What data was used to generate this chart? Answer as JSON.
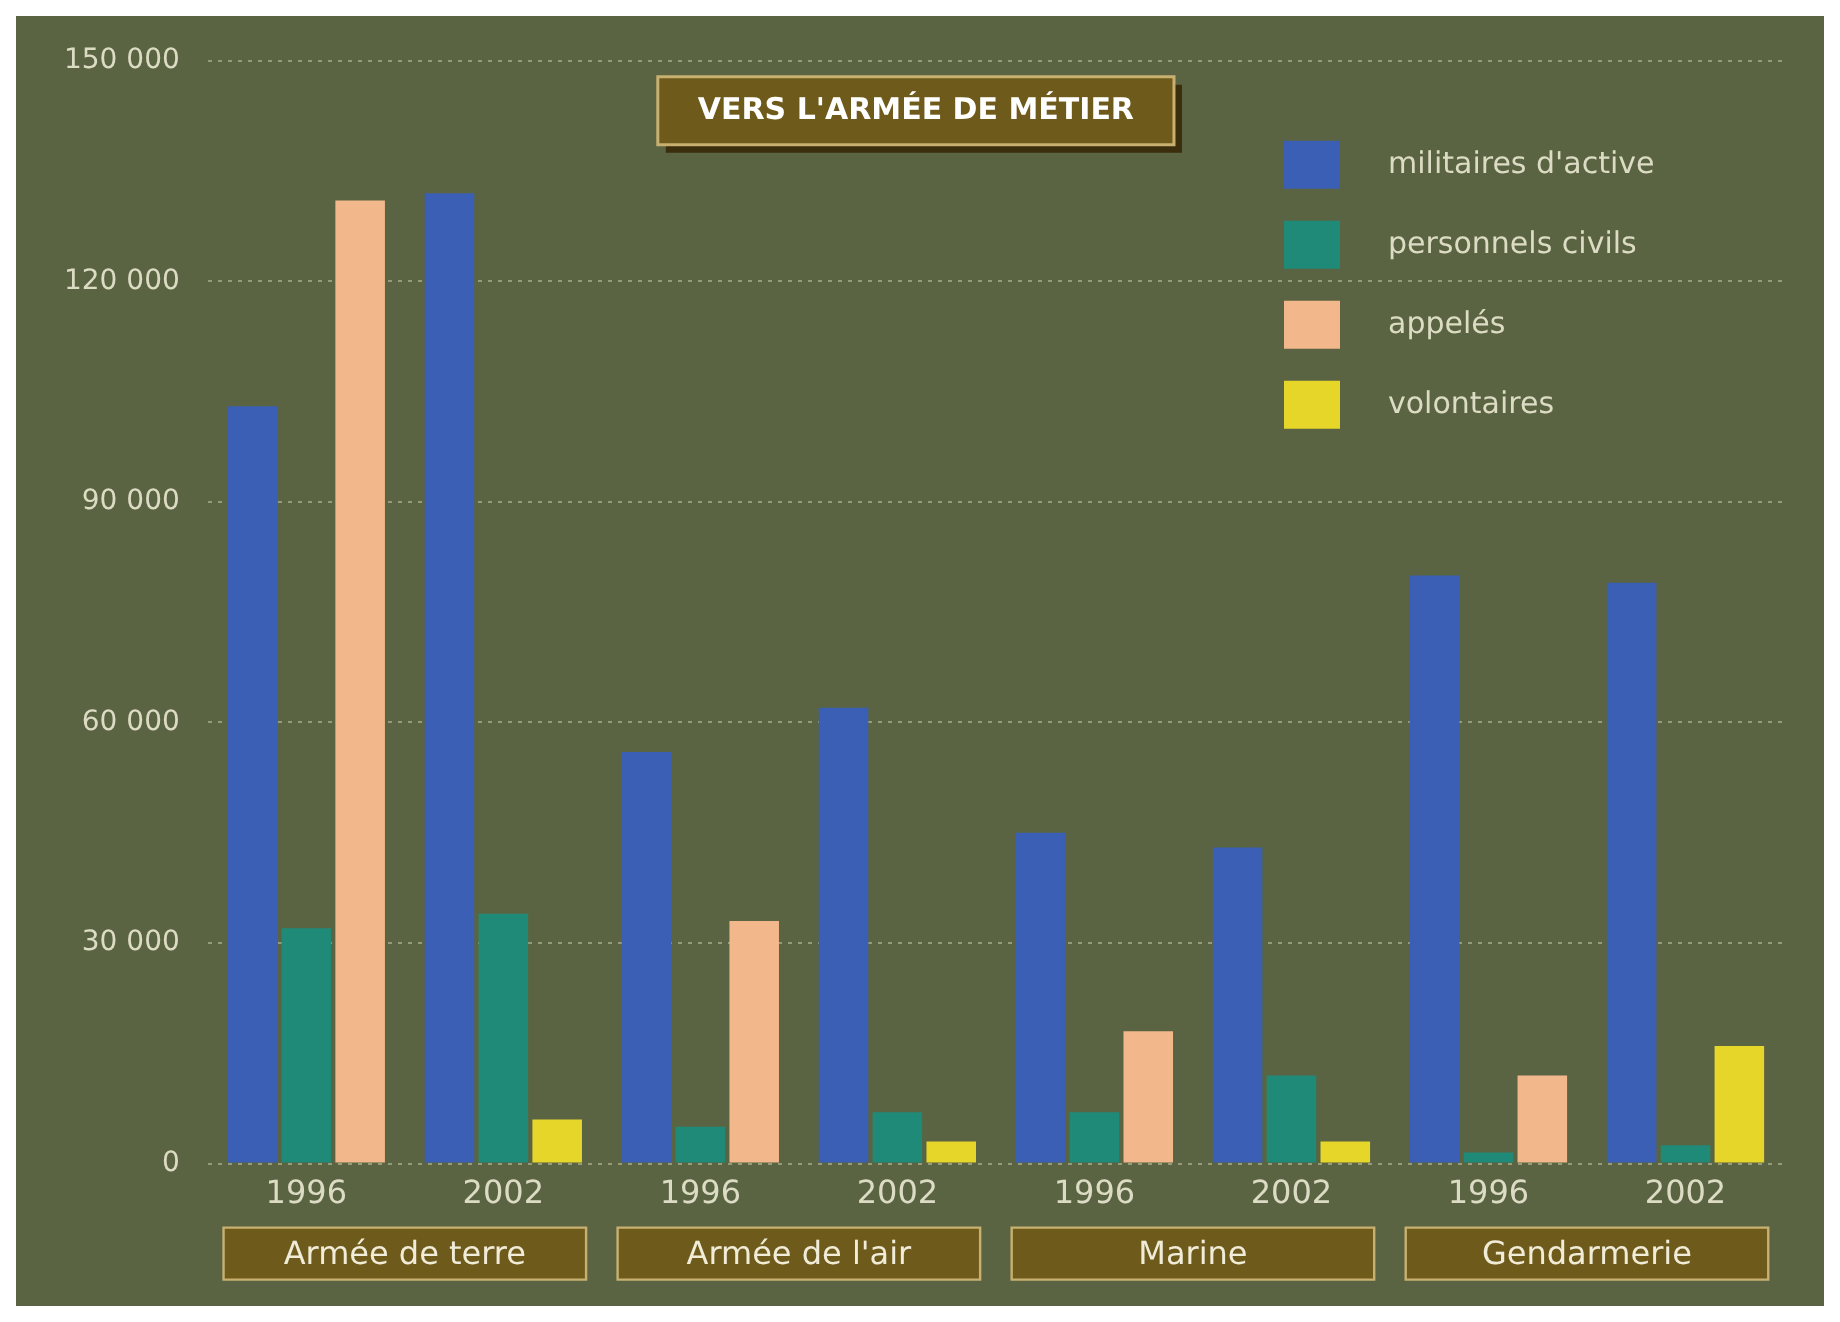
{
  "chart_data": {
    "type": "bar",
    "title": "VERS L'ARMÉE DE MÉTIER",
    "categories": [
      "1996",
      "2002",
      "1996",
      "2002",
      "1996",
      "2002",
      "1996",
      "2002"
    ],
    "series": [
      {
        "name": "militaires d'active",
        "color": "#3b5fb4",
        "values": [
          103000,
          132000,
          56000,
          62000,
          45000,
          43000,
          80000,
          79000
        ]
      },
      {
        "name": "personnels civils",
        "color": "#1f8a78",
        "values": [
          32000,
          34000,
          5000,
          7000,
          7000,
          12000,
          1500,
          2500
        ]
      },
      {
        "name": "appelés",
        "color": "#f2b88c",
        "values": [
          131000,
          null,
          33000,
          null,
          18000,
          null,
          12000,
          null
        ]
      },
      {
        "name": "volontaires",
        "color": "#e6d62a",
        "values": [
          null,
          6000,
          null,
          3000,
          null,
          3000,
          null,
          16000
        ]
      }
    ],
    "annotations": [
      "Armée de terre",
      "Armée de l'air",
      "Marine",
      "Gendarmerie"
    ],
    "ylim": [
      0,
      150000
    ],
    "yticks": [
      {
        "value": 0,
        "label": "0"
      },
      {
        "value": 30000,
        "label": "30 000"
      },
      {
        "value": 60000,
        "label": "60 000"
      },
      {
        "value": 90000,
        "label": "90 000"
      },
      {
        "value": 120000,
        "label": "120 000"
      },
      {
        "value": 150000,
        "label": "150 000"
      }
    ],
    "grid": "y",
    "legend": "top right"
  }
}
